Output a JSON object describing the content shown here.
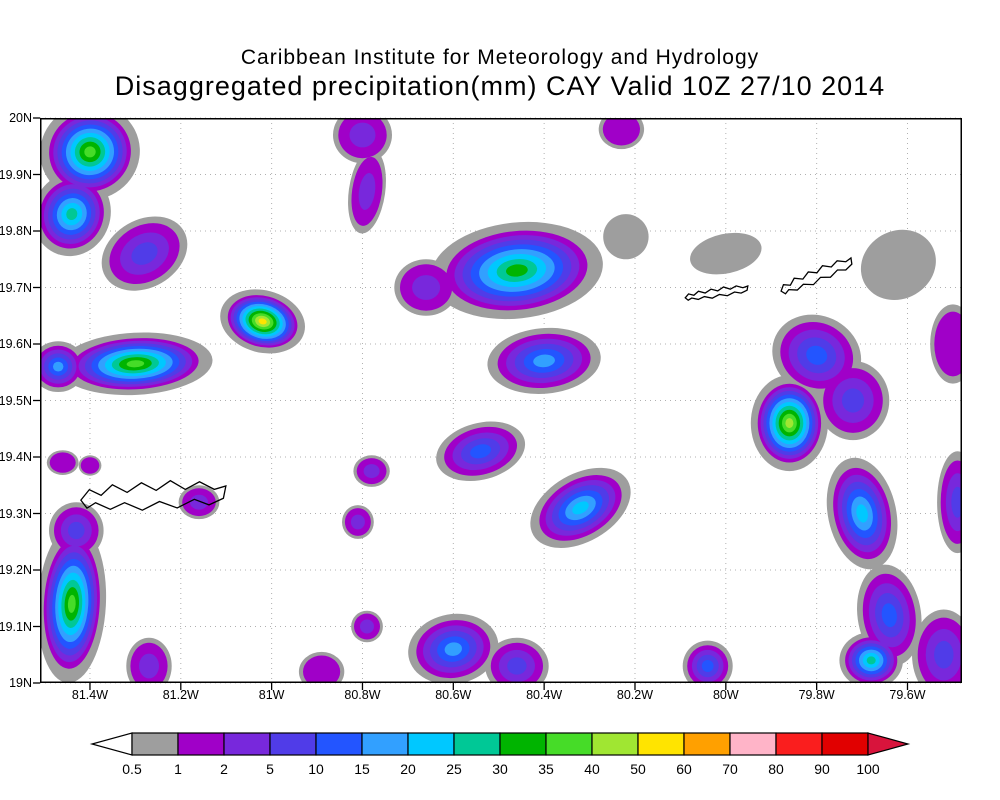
{
  "header": {
    "title_line1": "Caribbean Institute for Meteorology and Hydrology",
    "title_line2": "Disaggregated precipitation(mm) CAY Valid 10Z 27/10 2014"
  },
  "chart_data": {
    "type": "heatmap",
    "title": "Caribbean Institute for Meteorology and Hydrology",
    "subtitle": "Disaggregated precipitation(mm) CAY Valid 10Z 27/10 2014",
    "variable": "Disaggregated precipitation",
    "units": "mm",
    "region": "CAY",
    "valid": "10Z 27/10 2014",
    "xlabel": "",
    "ylabel": "",
    "grid": true,
    "lon_range": [
      -81.51,
      -79.48
    ],
    "lat_range": [
      19.0,
      20.0
    ],
    "x_ticks": [
      "81.4W",
      "81.2W",
      "81W",
      "80.8W",
      "80.6W",
      "80.4W",
      "80.2W",
      "80W",
      "79.8W",
      "79.6W"
    ],
    "x_tick_lons": [
      -81.4,
      -81.2,
      -81.0,
      -80.8,
      -80.6,
      -80.4,
      -80.2,
      -80.0,
      -79.8,
      -79.6
    ],
    "y_ticks": [
      "20N",
      "19.9N",
      "19.8N",
      "19.7N",
      "19.6N",
      "19.5N",
      "19.4N",
      "19.3N",
      "19.2N",
      "19.1N",
      "19N"
    ],
    "y_tick_lats": [
      20.0,
      19.9,
      19.8,
      19.7,
      19.6,
      19.5,
      19.4,
      19.3,
      19.2,
      19.1,
      19.0
    ],
    "levels": [
      0.5,
      1,
      2,
      5,
      10,
      15,
      20,
      25,
      30,
      35,
      40,
      50,
      60,
      70,
      80,
      90,
      100
    ],
    "level_colors": [
      "#9e9e9e",
      "#a000c8",
      "#7828dc",
      "#503ce8",
      "#2355ff",
      "#32a0ff",
      "#00c8ff",
      "#00c896",
      "#00b400",
      "#46dc28",
      "#a0e632",
      "#ffe400",
      "#ffa000",
      "#ffb4c8",
      "#fa1e1e",
      "#e10000"
    ],
    "colorbar": {
      "labels": [
        "0.5",
        "1",
        "2",
        "5",
        "10",
        "15",
        "20",
        "25",
        "30",
        "35",
        "40",
        "50",
        "60",
        "70",
        "80",
        "90",
        "100"
      ],
      "below_color": "#ffffff",
      "above_color": "#d8143c"
    },
    "colors": {
      "background": "#ffffff",
      "grid": "#b0b0b0",
      "frame": "#000000",
      "coastline": "#000000"
    },
    "features": [
      {
        "lon": -81.4,
        "lat": 19.94,
        "rx": 0.11,
        "ry": 0.085,
        "rot": -15,
        "peak": 35
      },
      {
        "lon": -81.44,
        "lat": 19.83,
        "rx": 0.085,
        "ry": 0.075,
        "rot": 20,
        "peak": 25
      },
      {
        "lon": -81.28,
        "lat": 19.76,
        "rx": 0.1,
        "ry": 0.06,
        "rot": -30,
        "peak": 5
      },
      {
        "lon": -80.8,
        "lat": 19.97,
        "rx": 0.065,
        "ry": 0.05,
        "rot": 0,
        "peak": 2
      },
      {
        "lon": -80.79,
        "lat": 19.87,
        "rx": 0.04,
        "ry": 0.075,
        "rot": 8,
        "peak": 2
      },
      {
        "lon": -80.46,
        "lat": 19.73,
        "rx": 0.19,
        "ry": 0.085,
        "rot": -6,
        "peak": 30
      },
      {
        "lon": -80.66,
        "lat": 19.7,
        "rx": 0.07,
        "ry": 0.05,
        "rot": 0,
        "peak": 2
      },
      {
        "lon": -80.22,
        "lat": 19.79,
        "rx": 0.05,
        "ry": 0.04,
        "rot": 0,
        "peak": 0.5
      },
      {
        "lon": -80.4,
        "lat": 19.57,
        "rx": 0.125,
        "ry": 0.058,
        "rot": -5,
        "peak": 15
      },
      {
        "lon": -81.3,
        "lat": 19.565,
        "rx": 0.17,
        "ry": 0.055,
        "rot": -3,
        "peak": 35
      },
      {
        "lon": -81.47,
        "lat": 19.56,
        "rx": 0.06,
        "ry": 0.045,
        "rot": 0,
        "peak": 15
      },
      {
        "lon": -81.02,
        "lat": 19.64,
        "rx": 0.095,
        "ry": 0.055,
        "rot": 15,
        "peak": 50
      },
      {
        "lon": -81.16,
        "lat": 19.32,
        "rx": 0.045,
        "ry": 0.03,
        "rot": 0,
        "peak": 2
      },
      {
        "lon": -80.78,
        "lat": 19.375,
        "rx": 0.04,
        "ry": 0.028,
        "rot": 0,
        "peak": 2
      },
      {
        "lon": -80.81,
        "lat": 19.285,
        "rx": 0.035,
        "ry": 0.03,
        "rot": 0,
        "peak": 2
      },
      {
        "lon": -80.54,
        "lat": 19.41,
        "rx": 0.1,
        "ry": 0.05,
        "rot": -15,
        "peak": 10
      },
      {
        "lon": -80.32,
        "lat": 19.31,
        "rx": 0.12,
        "ry": 0.06,
        "rot": -30,
        "peak": 20
      },
      {
        "lon": -79.8,
        "lat": 19.58,
        "rx": 0.1,
        "ry": 0.07,
        "rot": 25,
        "peak": 10
      },
      {
        "lon": -79.86,
        "lat": 19.46,
        "rx": 0.085,
        "ry": 0.085,
        "rot": 0,
        "peak": 40
      },
      {
        "lon": -79.72,
        "lat": 19.5,
        "rx": 0.08,
        "ry": 0.07,
        "rot": 0,
        "peak": 5
      },
      {
        "lon": -79.7,
        "lat": 19.3,
        "rx": 0.075,
        "ry": 0.1,
        "rot": -12,
        "peak": 20
      },
      {
        "lon": -79.64,
        "lat": 19.12,
        "rx": 0.07,
        "ry": 0.09,
        "rot": -8,
        "peak": 10
      },
      {
        "lon": -79.68,
        "lat": 19.04,
        "rx": 0.07,
        "ry": 0.05,
        "rot": 0,
        "peak": 25
      },
      {
        "lon": -79.49,
        "lat": 19.32,
        "rx": 0.045,
        "ry": 0.09,
        "rot": 0,
        "peak": 5
      },
      {
        "lon": -79.52,
        "lat": 19.05,
        "rx": 0.07,
        "ry": 0.08,
        "rot": 0,
        "peak": 5
      },
      {
        "lon": -79.5,
        "lat": 19.6,
        "rx": 0.05,
        "ry": 0.07,
        "rot": 0,
        "peak": 1
      },
      {
        "lon": -79.62,
        "lat": 19.74,
        "rx": 0.085,
        "ry": 0.06,
        "rot": -30,
        "peak": 0.5
      },
      {
        "lon": -80.0,
        "lat": 19.76,
        "rx": 0.08,
        "ry": 0.035,
        "rot": -12,
        "peak": 0.5
      },
      {
        "lon": -81.44,
        "lat": 19.14,
        "rx": 0.075,
        "ry": 0.14,
        "rot": 3,
        "peak": 35
      },
      {
        "lon": -81.43,
        "lat": 19.27,
        "rx": 0.06,
        "ry": 0.05,
        "rot": 0,
        "peak": 5
      },
      {
        "lon": -81.27,
        "lat": 19.03,
        "rx": 0.05,
        "ry": 0.05,
        "rot": 0,
        "peak": 2
      },
      {
        "lon": -81.46,
        "lat": 19.39,
        "rx": 0.035,
        "ry": 0.022,
        "rot": 0,
        "peak": 1
      },
      {
        "lon": -81.4,
        "lat": 19.385,
        "rx": 0.025,
        "ry": 0.018,
        "rot": 0,
        "peak": 1
      },
      {
        "lon": -80.6,
        "lat": 19.06,
        "rx": 0.1,
        "ry": 0.062,
        "rot": -10,
        "peak": 15
      },
      {
        "lon": -80.46,
        "lat": 19.03,
        "rx": 0.07,
        "ry": 0.05,
        "rot": 0,
        "peak": 5
      },
      {
        "lon": -80.79,
        "lat": 19.1,
        "rx": 0.035,
        "ry": 0.028,
        "rot": 0,
        "peak": 2
      },
      {
        "lon": -80.89,
        "lat": 19.02,
        "rx": 0.05,
        "ry": 0.035,
        "rot": 0,
        "peak": 1
      },
      {
        "lon": -80.04,
        "lat": 19.03,
        "rx": 0.055,
        "ry": 0.045,
        "rot": 0,
        "peak": 10
      },
      {
        "lon": -80.23,
        "lat": 19.98,
        "rx": 0.05,
        "ry": 0.035,
        "rot": 0,
        "peak": 1
      }
    ],
    "islands": [
      {
        "name": "Grand Cayman",
        "lon": -81.26,
        "lat": 19.33,
        "w": 0.32,
        "h": 0.09,
        "rot": -2
      },
      {
        "name": "Little Cayman",
        "lon": -80.02,
        "lat": 19.69,
        "w": 0.14,
        "h": 0.03,
        "rot": -8
      },
      {
        "name": "Cayman Brac",
        "lon": -79.8,
        "lat": 19.72,
        "w": 0.17,
        "h": 0.045,
        "rot": -22
      }
    ]
  }
}
